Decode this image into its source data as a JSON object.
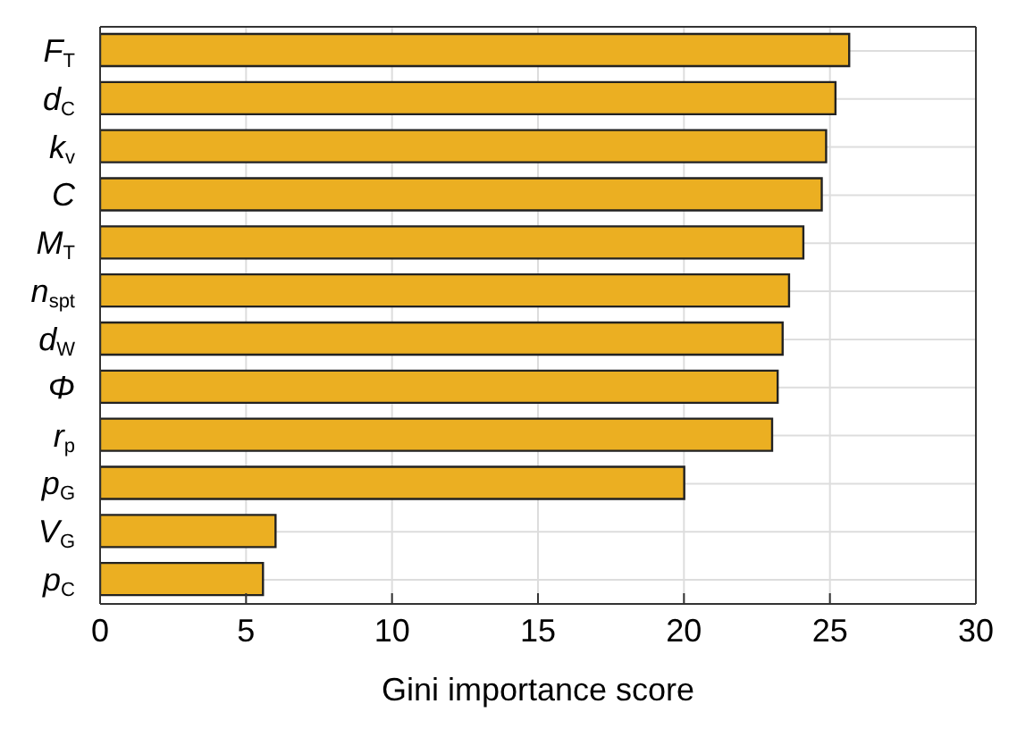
{
  "chart_data": {
    "type": "bar",
    "orientation": "horizontal",
    "xlabel": "Gini importance score",
    "categories": [
      "F$_{T}$",
      "d$_{C}$",
      "k$_{v}$",
      "C",
      "M$_{T}$",
      "n$_{spt}$",
      "d$_{W}$",
      "Φ",
      "r$_{p}$",
      "p$_{G}$",
      "V$_{G}$",
      "p$_{C}$"
    ],
    "values": [
      25.66,
      25.19,
      24.87,
      24.72,
      24.09,
      23.6,
      23.38,
      23.21,
      23.02,
      20.01,
      6.01,
      5.58
    ],
    "color": "#ebaf22",
    "xlim": [
      0,
      30
    ],
    "xticks": [
      0,
      5,
      10,
      15,
      20,
      25,
      30
    ],
    "grid": true
  }
}
